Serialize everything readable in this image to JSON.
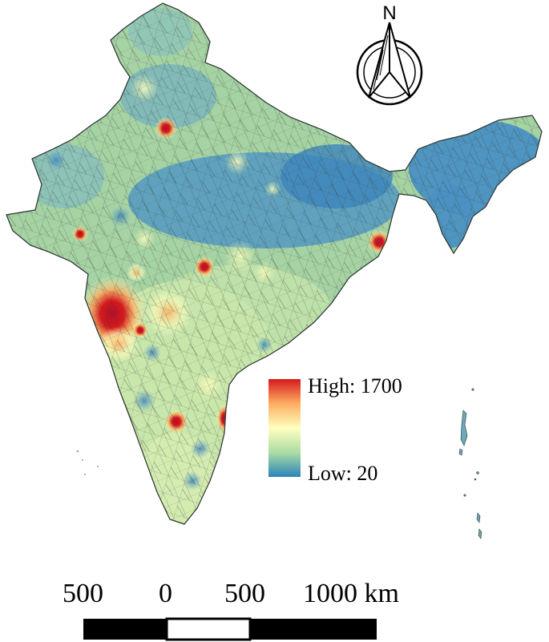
{
  "legend": {
    "high_label": "High: 1700",
    "low_label": "Low: 20",
    "gradient_colors": [
      "#d7191c",
      "#fdae61",
      "#ffffbf",
      "#abdda4",
      "#2b83ba"
    ]
  },
  "north_arrow": {
    "label": "N"
  },
  "scale_bar": {
    "labels": [
      "500",
      "0",
      "500",
      "1000 km"
    ]
  },
  "colors": {
    "base_fill": "#a6d3a4",
    "low_fill": "#4f96c4",
    "hot_fill": "#d7191c",
    "boundary": "#2f3a36"
  }
}
